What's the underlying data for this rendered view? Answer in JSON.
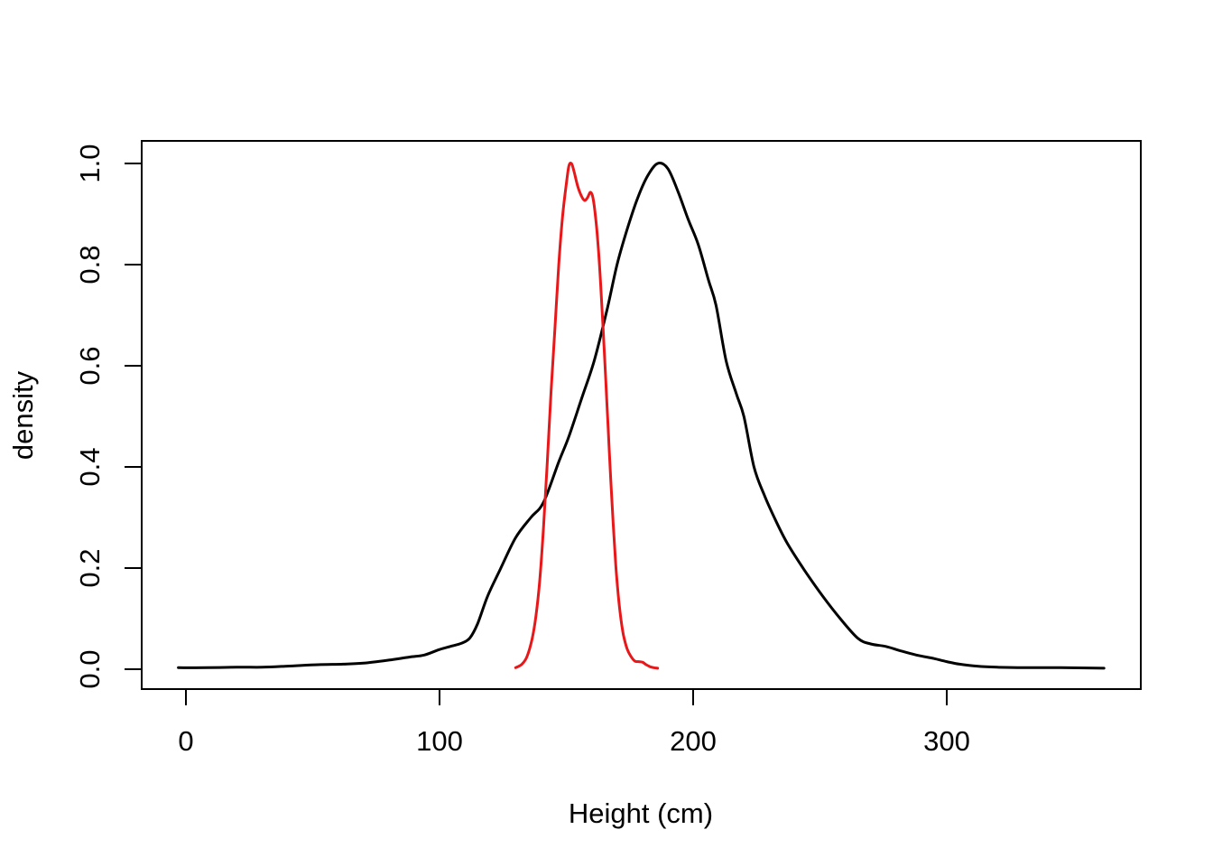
{
  "figure": {
    "background": "#ffffff",
    "title": ""
  },
  "chart_data": {
    "type": "line",
    "title": "",
    "xlabel": "Height (cm)",
    "ylabel": "density",
    "x_ticks": [
      0,
      100,
      200,
      300
    ],
    "y_ticks": [
      "0.0",
      "0.2",
      "0.4",
      "0.6",
      "0.8",
      "1.0"
    ],
    "xlim": [
      -17,
      377
    ],
    "ylim": [
      -0.04,
      1.04
    ],
    "grid": false,
    "legend_position": "none",
    "axis_color": "#000000",
    "series": [
      {
        "name": "black-density-curve",
        "color": "#000000",
        "line_width": 3,
        "points": [
          [
            -3,
            0.003
          ],
          [
            8,
            0.003
          ],
          [
            20,
            0.004
          ],
          [
            30,
            0.004
          ],
          [
            40,
            0.006
          ],
          [
            52,
            0.009
          ],
          [
            62,
            0.01
          ],
          [
            70,
            0.012
          ],
          [
            80,
            0.018
          ],
          [
            88,
            0.024
          ],
          [
            94,
            0.028
          ],
          [
            100,
            0.039
          ],
          [
            105,
            0.046
          ],
          [
            109,
            0.052
          ],
          [
            112,
            0.062
          ],
          [
            115,
            0.09
          ],
          [
            119,
            0.145
          ],
          [
            124,
            0.198
          ],
          [
            130,
            0.26
          ],
          [
            136,
            0.3
          ],
          [
            141,
            0.33
          ],
          [
            147,
            0.41
          ],
          [
            151,
            0.46
          ],
          [
            156,
            0.535
          ],
          [
            161,
            0.61
          ],
          [
            166,
            0.71
          ],
          [
            170,
            0.8
          ],
          [
            174,
            0.87
          ],
          [
            178,
            0.93
          ],
          [
            182,
            0.975
          ],
          [
            186,
            1.0
          ],
          [
            190,
            0.99
          ],
          [
            194,
            0.945
          ],
          [
            198,
            0.89
          ],
          [
            202,
            0.84
          ],
          [
            206,
            0.77
          ],
          [
            209,
            0.72
          ],
          [
            213,
            0.61
          ],
          [
            217,
            0.545
          ],
          [
            220,
            0.5
          ],
          [
            224,
            0.4
          ],
          [
            228,
            0.345
          ],
          [
            232,
            0.3
          ],
          [
            237,
            0.25
          ],
          [
            244,
            0.195
          ],
          [
            251,
            0.145
          ],
          [
            258,
            0.1
          ],
          [
            265,
            0.061
          ],
          [
            270,
            0.05
          ],
          [
            276,
            0.045
          ],
          [
            282,
            0.036
          ],
          [
            288,
            0.028
          ],
          [
            295,
            0.021
          ],
          [
            300,
            0.015
          ],
          [
            305,
            0.01
          ],
          [
            312,
            0.006
          ],
          [
            320,
            0.004
          ],
          [
            330,
            0.003
          ],
          [
            345,
            0.003
          ],
          [
            362,
            0.002
          ]
        ]
      },
      {
        "name": "red-density-curve",
        "color": "#e81719",
        "line_width": 3,
        "points": [
          [
            130,
            0.003
          ],
          [
            132.5,
            0.01
          ],
          [
            134.5,
            0.025
          ],
          [
            136.5,
            0.06
          ],
          [
            138,
            0.105
          ],
          [
            139.5,
            0.175
          ],
          [
            141,
            0.28
          ],
          [
            142.5,
            0.41
          ],
          [
            144,
            0.55
          ],
          [
            145.5,
            0.675
          ],
          [
            147,
            0.8
          ],
          [
            148.5,
            0.895
          ],
          [
            150,
            0.96
          ],
          [
            151,
            0.995
          ],
          [
            152,
            1.0
          ],
          [
            153,
            0.985
          ],
          [
            154.5,
            0.955
          ],
          [
            156,
            0.935
          ],
          [
            157.2,
            0.927
          ],
          [
            158.3,
            0.932
          ],
          [
            159.5,
            0.943
          ],
          [
            160.5,
            0.932
          ],
          [
            161.5,
            0.895
          ],
          [
            162.5,
            0.84
          ],
          [
            163.5,
            0.765
          ],
          [
            164.5,
            0.675
          ],
          [
            165.5,
            0.575
          ],
          [
            166.5,
            0.475
          ],
          [
            167.5,
            0.375
          ],
          [
            168.5,
            0.285
          ],
          [
            169.5,
            0.205
          ],
          [
            170.5,
            0.145
          ],
          [
            171.5,
            0.1
          ],
          [
            172.5,
            0.068
          ],
          [
            174,
            0.04
          ],
          [
            175.5,
            0.025
          ],
          [
            177,
            0.016
          ],
          [
            178.5,
            0.015
          ],
          [
            180,
            0.014
          ],
          [
            181.5,
            0.009
          ],
          [
            183,
            0.005
          ],
          [
            184.5,
            0.003
          ],
          [
            186,
            0.002
          ]
        ]
      }
    ]
  }
}
